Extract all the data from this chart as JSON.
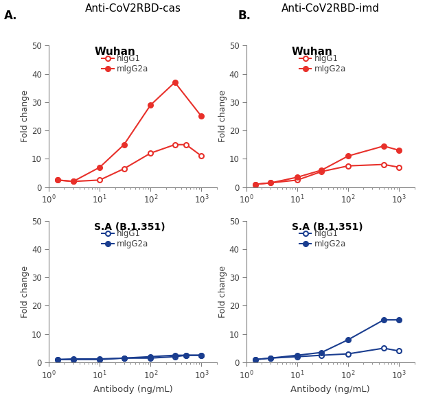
{
  "x_wuhan_cas_hIgG1": [
    1.5,
    3,
    10,
    30,
    100,
    300,
    500,
    1000
  ],
  "y_wuhan_cas_hIgG1": [
    2.5,
    2.0,
    2.5,
    6.5,
    12.0,
    15.0,
    15.0,
    11.0
  ],
  "x_wuhan_cas_mIgG2a": [
    1.5,
    3,
    10,
    30,
    100,
    300,
    1000
  ],
  "y_wuhan_cas_mIgG2a": [
    2.5,
    2.0,
    7.0,
    15.0,
    29.0,
    37.0,
    25.0
  ],
  "x_wuhan_imd_hIgG1": [
    1.5,
    3,
    10,
    30,
    100,
    500,
    1000
  ],
  "y_wuhan_imd_hIgG1": [
    1.0,
    1.5,
    2.5,
    5.5,
    7.5,
    8.0,
    7.0
  ],
  "x_wuhan_imd_mIgG2a": [
    1.5,
    3,
    10,
    30,
    100,
    500,
    1000
  ],
  "y_wuhan_imd_mIgG2a": [
    1.0,
    1.5,
    3.5,
    6.0,
    11.0,
    14.5,
    13.0
  ],
  "x_sa_cas_hIgG1": [
    1.5,
    3,
    10,
    30,
    100,
    300,
    500,
    1000
  ],
  "y_sa_cas_hIgG1": [
    1.0,
    1.0,
    1.0,
    1.5,
    1.5,
    2.0,
    2.5,
    2.5
  ],
  "x_sa_cas_mIgG2a": [
    1.5,
    3,
    10,
    30,
    100,
    300,
    500,
    1000
  ],
  "y_sa_cas_mIgG2a": [
    1.0,
    1.2,
    1.2,
    1.5,
    2.0,
    2.5,
    2.5,
    2.5
  ],
  "x_sa_imd_hIgG1": [
    1.5,
    3,
    10,
    30,
    100,
    500,
    1000
  ],
  "y_sa_imd_hIgG1": [
    1.0,
    1.5,
    2.0,
    2.5,
    3.0,
    5.0,
    4.0
  ],
  "x_sa_imd_mIgG2a": [
    1.5,
    3,
    10,
    30,
    100,
    500,
    1000
  ],
  "y_sa_imd_mIgG2a": [
    1.0,
    1.5,
    2.5,
    3.5,
    8.0,
    15.0,
    15.0
  ],
  "red_color": "#e8302a",
  "blue_color": "#1a3d8f",
  "text_color": "#404040",
  "axis_label_color": "#808080",
  "title_color": "#000000",
  "xlabel": "Antibody (ng/mL)",
  "ylabel": "Fold change",
  "col_A_title": "Anti-CoV2RBD-cas",
  "col_B_title": "Anti-CoV2RBD-imd",
  "wuhan_label": "Wuhan",
  "sa_label": "S.A (B.1.351)",
  "legend_hIgG1": "hIgG1",
  "legend_mIgG2a": "mIgG2a",
  "ylim": [
    0,
    50
  ],
  "yticks": [
    0,
    10,
    20,
    30,
    40,
    50
  ]
}
